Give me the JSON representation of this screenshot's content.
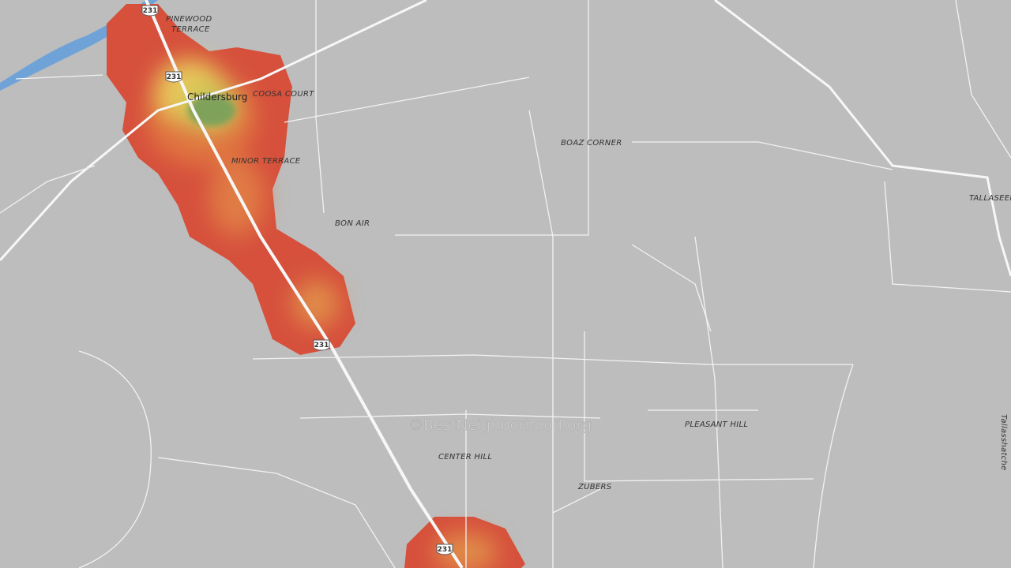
{
  "places": [
    {
      "label": "Childersburg"
    },
    {
      "label": "PINEWOOD"
    },
    {
      "label": "TERRACE"
    },
    {
      "label": "COOSA COURT"
    },
    {
      "label": "MINOR TERRACE"
    },
    {
      "label": "BOAZ CORNER"
    },
    {
      "label": "BON AIR"
    },
    {
      "label": "TALLASEEH"
    },
    {
      "label": "PLEASANT HILL"
    },
    {
      "label": "CENTER HILL"
    },
    {
      "label": "ZUBERS"
    },
    {
      "label": "Tallasshatche"
    }
  ],
  "shields": [
    "231",
    "231",
    "231",
    "231"
  ],
  "watermark": "©BestNeighborhood.org"
}
